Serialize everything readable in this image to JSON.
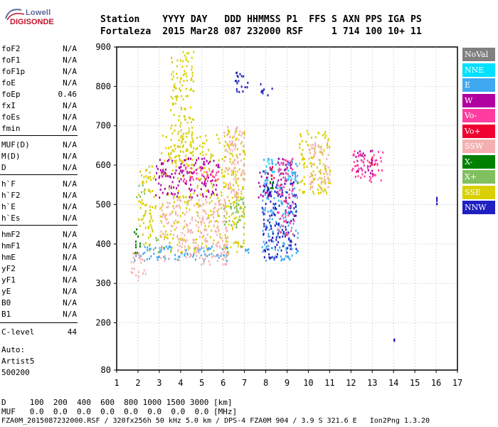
{
  "logo": {
    "brand_top": "Lowell",
    "brand_bottom": "DIGISONDE"
  },
  "header": {
    "line1": "Station    YYYY DAY   DDD HHMMSS P1  FFS S AXN PPS IGA PS",
    "line2": "Fortaleza  2015 Mar28 087 232000 RSF     1 714 100 10+ 11"
  },
  "params": [
    {
      "name": "foF2",
      "value": "N/A"
    },
    {
      "name": "foF1",
      "value": "N/A"
    },
    {
      "name": "foF1p",
      "value": "N/A"
    },
    {
      "name": "foE",
      "value": "N/A"
    },
    {
      "name": "foEp",
      "value": "0.46"
    },
    {
      "name": "fxI",
      "value": "N/A"
    },
    {
      "name": "foEs",
      "value": "N/A"
    },
    {
      "name": "fmin",
      "value": "N/A"
    },
    {
      "name": "MUF(D)",
      "value": "N/A"
    },
    {
      "name": "M(D)",
      "value": "N/A"
    },
    {
      "name": "D",
      "value": "N/A"
    },
    {
      "name": "h`F",
      "value": "N/A"
    },
    {
      "name": "h`F2",
      "value": "N/A"
    },
    {
      "name": "h`E",
      "value": "N/A"
    },
    {
      "name": "h`Es",
      "value": "N/A"
    },
    {
      "name": "hmF2",
      "value": "N/A"
    },
    {
      "name": "hmF1",
      "value": "N/A"
    },
    {
      "name": "hmE",
      "value": "N/A"
    },
    {
      "name": "yF2",
      "value": "N/A"
    },
    {
      "name": "yF1",
      "value": "N/A"
    },
    {
      "name": "yE",
      "value": "N/A"
    },
    {
      "name": "B0",
      "value": "N/A"
    },
    {
      "name": "B1",
      "value": "N/A"
    },
    {
      "name": "C-level",
      "value": "44"
    }
  ],
  "auto": {
    "line1": "Auto:",
    "line2": "Artist5",
    "line3": "500200"
  },
  "legend": [
    {
      "label": "NoVal",
      "color": "#808080"
    },
    {
      "label": "NNE",
      "color": "#00e0ff"
    },
    {
      "label": "E",
      "color": "#40a8f0"
    },
    {
      "label": "W",
      "color": "#b000a0"
    },
    {
      "label": "Vo-",
      "color": "#ff3ca0"
    },
    {
      "label": "Vo+",
      "color": "#ee0030"
    },
    {
      "label": "SSW",
      "color": "#f4b0b0"
    },
    {
      "label": "X-",
      "color": "#008000"
    },
    {
      "label": "X+",
      "color": "#80c060"
    },
    {
      "label": "SSE",
      "color": "#d8d000"
    },
    {
      "label": "NNW",
      "color": "#2020c0"
    }
  ],
  "footer": {
    "line1": "D     100  200  400  600  800 1000 1500 3000 [km]",
    "line2": "MUF   0.0  0.0  0.0  0.0  0.0  0.0  0.0  0.0 [MHz]",
    "line3": "FZA0M_2015087232000.RSF / 320fx256h 50 kHz 5.0 km / DPS-4 FZA0M 904 / 3.9 S 321.6 E   Ion2Png 1.3.20"
  },
  "chart_data": {
    "type": "scatter",
    "title": "",
    "xlabel": "",
    "ylabel": "",
    "xlim": [
      1,
      17
    ],
    "ylim": [
      80,
      900
    ],
    "x_ticks": [
      1,
      2,
      3,
      4,
      5,
      6,
      7,
      8,
      9,
      10,
      11,
      12,
      13,
      14,
      15,
      16,
      17
    ],
    "y_ticks": [
      80,
      200,
      300,
      400,
      500,
      600,
      700,
      800,
      900
    ],
    "grid": "dotted",
    "legend_placement": "right",
    "series": [
      {
        "label": "SSE",
        "clusters": [
          [
            2.0,
            2.8,
            400,
            600
          ],
          [
            3.0,
            6.0,
            380,
            680
          ],
          [
            3.5,
            4.6,
            600,
            900
          ],
          [
            6.0,
            7.0,
            380,
            700
          ],
          [
            9.5,
            11.0,
            530,
            690
          ]
        ]
      },
      {
        "label": "E",
        "clusters": [
          [
            1.8,
            6.2,
            360,
            400
          ],
          [
            6.8,
            7.2,
            380,
            400
          ],
          [
            7.8,
            9.5,
            360,
            620
          ]
        ]
      },
      {
        "label": "W",
        "clusters": [
          [
            2.8,
            5.8,
            520,
            620
          ],
          [
            7.6,
            8.2,
            520,
            600
          ],
          [
            8.5,
            9.2,
            560,
            620
          ],
          [
            12.2,
            13.0,
            580,
            640
          ]
        ]
      },
      {
        "label": "SSW",
        "clusters": [
          [
            1.6,
            2.4,
            300,
            380
          ],
          [
            3.0,
            6.2,
            350,
            520
          ],
          [
            6.0,
            7.0,
            520,
            700
          ],
          [
            10.0,
            11.0,
            540,
            660
          ]
        ]
      },
      {
        "label": "NNW",
        "clusters": [
          [
            6.5,
            7.2,
            780,
            840
          ],
          [
            7.7,
            8.3,
            780,
            810
          ],
          [
            7.8,
            8.8,
            360,
            560
          ],
          [
            8.8,
            9.4,
            380,
            560
          ],
          [
            14.0,
            14.0,
            155,
            160
          ],
          [
            16.0,
            16.0,
            500,
            520
          ]
        ]
      },
      {
        "label": "Vo-",
        "clusters": [
          [
            4.0,
            5.8,
            560,
            600
          ],
          [
            8.5,
            9.3,
            420,
            620
          ],
          [
            12.0,
            13.5,
            560,
            640
          ]
        ]
      },
      {
        "label": "Vo+",
        "clusters": [
          [
            8.2,
            8.6,
            560,
            600
          ],
          [
            12.8,
            13.1,
            600,
            640
          ]
        ]
      },
      {
        "label": "NNE",
        "clusters": [
          [
            7.9,
            8.3,
            580,
            620
          ],
          [
            9.0,
            9.3,
            560,
            600
          ]
        ]
      },
      {
        "label": "X-",
        "clusters": [
          [
            1.8,
            2.2,
            380,
            440
          ],
          [
            8.0,
            8.3,
            540,
            560
          ]
        ]
      },
      {
        "label": "X+",
        "clusters": [
          [
            1.9,
            2.3,
            520,
            560
          ],
          [
            2.5,
            3.0,
            380,
            420
          ],
          [
            6.0,
            7.0,
            440,
            520
          ]
        ]
      }
    ]
  }
}
